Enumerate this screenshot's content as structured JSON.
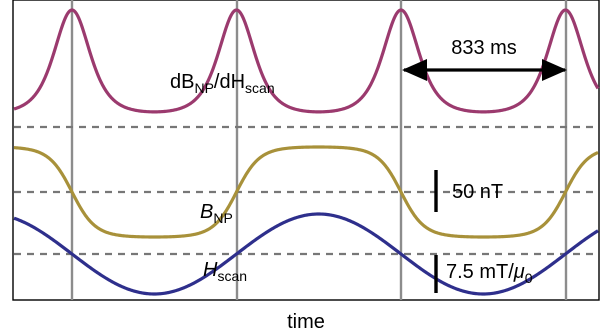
{
  "chart_data": {
    "type": "line",
    "xlabel": "time",
    "ylabel": "",
    "x_range": [
      0,
      1
    ],
    "period_marker_label": "833 ms",
    "scalebars": [
      {
        "label_text": "50 nT",
        "label_math": ""
      },
      {
        "label_text": "7.5 mT/",
        "label_math": "μ",
        "label_sub": "0"
      }
    ],
    "series": [
      {
        "name": "dB",
        "name_sub": "NP",
        "name_tail": "/dH",
        "name_sub2": "scan",
        "color": "#9b3a6e",
        "shape": "peaks"
      },
      {
        "name": "B",
        "name_sub": "NP",
        "color": "#a8913a",
        "shape": "cosine_flattened"
      },
      {
        "name": "H",
        "name_sub": "scan",
        "color": "#2e2f8c",
        "shape": "sine"
      }
    ],
    "grid": true,
    "colors": {
      "frame": "#000000",
      "vertical_grid": "#8c8c8c",
      "dashed": "#777777"
    }
  }
}
